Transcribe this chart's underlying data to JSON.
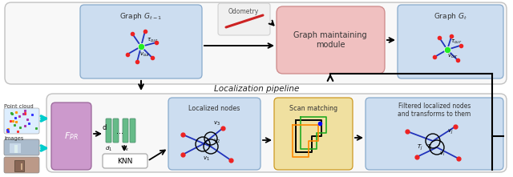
{
  "top_panel_bg": "#ccddf0",
  "pink_box_color": "#f0c0c0",
  "odometry_box_color": "#f0f0f0",
  "yellow_box_color": "#f0e0a0",
  "fpr_box_color": "#cc99cc",
  "node_color_green": "#22ee22",
  "node_color_red": "#ee2222",
  "edge_color_blue": "#2233bb",
  "cyan_color": "#00cccc",
  "label_gmm": "Graph maintaining\nmodule",
  "label_odometry": "Odometry",
  "label_locpipeline": "Localization pipeline",
  "label_fpr": "$F_{PR}$",
  "label_knn": "KNN",
  "label_locnodes": "Localized nodes",
  "label_scanmatch": "Scan matching",
  "label_filtered": "Filtered localized nodes\nand transforms to them",
  "label_pointcloud": "Point cloud",
  "label_images": "Images",
  "tcur_label": "$\\tau_{cur}$",
  "vcur_label": "$v_{cur}$"
}
